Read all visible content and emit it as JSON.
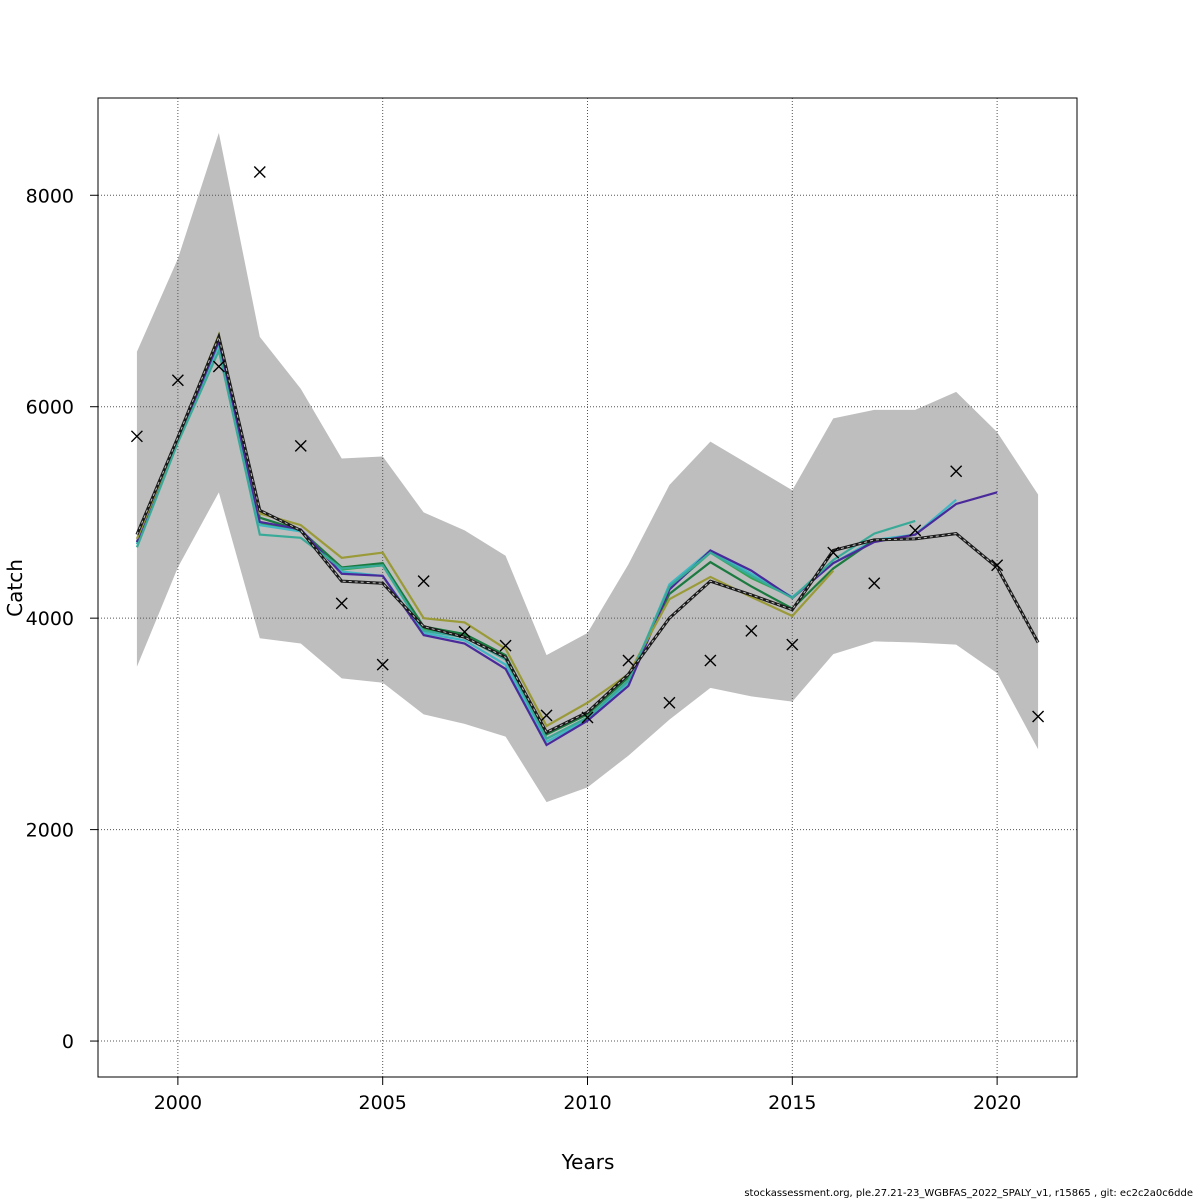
{
  "chart_data": {
    "type": "line",
    "title": "",
    "xlabel": "Years",
    "ylabel": "Catch",
    "xlim": [
      1998.05,
      2021.95
    ],
    "ylim": [
      -340,
      8920
    ],
    "x_ticks": [
      2000,
      2005,
      2010,
      2015,
      2020
    ],
    "y_ticks": [
      0,
      2000,
      4000,
      6000,
      8000
    ],
    "grid": true,
    "legend": "none",
    "colors": {
      "band": "#bebebe",
      "retro_1": "#31a354",
      "retro_2": "#41b6c4",
      "retro_3": "#1a7a3f",
      "retro_4": "#4a2a9a",
      "retro_5": "#9a9a38",
      "retro_6": "#3aaa98",
      "base": "#1a1a1a"
    },
    "band": {
      "x": [
        1999,
        2000,
        2001,
        2002,
        2003,
        2004,
        2005,
        2006,
        2007,
        2008,
        2009,
        2010,
        2011,
        2012,
        2013,
        2014,
        2015,
        2016,
        2017,
        2018,
        2019,
        2020,
        2021
      ],
      "upper": [
        6520,
        7400,
        8590,
        6660,
        6170,
        5510,
        5530,
        5000,
        4830,
        4590,
        3650,
        3860,
        4510,
        5260,
        5670,
        5440,
        5210,
        5890,
        5970,
        5970,
        6140,
        5760,
        5170
      ],
      "lower": [
        3540,
        4480,
        5190,
        3810,
        3760,
        3430,
        3390,
        3090,
        3000,
        2880,
        2260,
        2400,
        2700,
        3040,
        3340,
        3260,
        3210,
        3660,
        3780,
        3770,
        3750,
        3480,
        2760
      ]
    },
    "observed": {
      "x": [
        1999,
        2000,
        2001,
        2002,
        2003,
        2004,
        2005,
        2006,
        2007,
        2008,
        2009,
        2010,
        2011,
        2012,
        2013,
        2014,
        2015,
        2016,
        2017,
        2018,
        2019,
        2020,
        2021
      ],
      "y": [
        5720,
        6250,
        6380,
        8220,
        5630,
        4140,
        3560,
        4350,
        3870,
        3740,
        3080,
        3060,
        3600,
        3200,
        3600,
        3880,
        3750,
        4620,
        4330,
        4830,
        5390,
        4500,
        3070
      ]
    },
    "series": [
      {
        "color_key": "retro_1",
        "x": [
          1999,
          2000,
          2001,
          2002,
          2003,
          2004,
          2005,
          2006,
          2007,
          2008,
          2009,
          2010,
          2011,
          2012,
          2013,
          2014,
          2015
        ],
        "values": [
          4700,
          5680,
          6600,
          4900,
          4820,
          4460,
          4500,
          3900,
          3830,
          3610,
          2860,
          3060,
          3400,
          4280,
          4620,
          4380,
          4200
        ]
      },
      {
        "color_key": "retro_2",
        "x": [
          1999,
          2000,
          2001,
          2002,
          2003,
          2004,
          2005,
          2006,
          2007,
          2008,
          2009,
          2010,
          2011,
          2012,
          2013,
          2014,
          2015,
          2016,
          2017,
          2018,
          2019
        ],
        "values": [
          4700,
          5680,
          6590,
          4880,
          4820,
          4440,
          4400,
          3860,
          3790,
          3560,
          2830,
          3040,
          3390,
          4320,
          4640,
          4420,
          4200,
          4520,
          4740,
          4790,
          5120
        ]
      },
      {
        "color_key": "retro_3",
        "x": [
          1999,
          2000,
          2001,
          2002,
          2003,
          2004,
          2005,
          2006,
          2007,
          2008,
          2009,
          2010,
          2011,
          2012,
          2013,
          2014,
          2015,
          2016,
          2017
        ],
        "values": [
          4720,
          5680,
          6640,
          4950,
          4830,
          4480,
          4520,
          3920,
          3850,
          3650,
          2900,
          3090,
          3440,
          4230,
          4530,
          4300,
          4090,
          4470,
          4740
        ]
      },
      {
        "color_key": "retro_4",
        "x": [
          1999,
          2000,
          2001,
          2002,
          2003,
          2004,
          2005,
          2006,
          2007,
          2008,
          2009,
          2010,
          2011,
          2012,
          2013,
          2014,
          2015,
          2016,
          2017,
          2018,
          2019,
          2020
        ],
        "values": [
          4720,
          5680,
          6620,
          4910,
          4840,
          4420,
          4400,
          3840,
          3760,
          3520,
          2800,
          3030,
          3360,
          4270,
          4640,
          4450,
          4190,
          4520,
          4720,
          4790,
          5080,
          5190
        ]
      },
      {
        "color_key": "retro_5",
        "x": [
          1999,
          2000,
          2001,
          2002,
          2003,
          2004,
          2005,
          2006,
          2007,
          2008,
          2009,
          2010,
          2011,
          2012,
          2013,
          2014,
          2015,
          2016
        ],
        "values": [
          4750,
          5700,
          6680,
          4990,
          4880,
          4570,
          4620,
          4000,
          3960,
          3710,
          2980,
          3200,
          3470,
          4180,
          4390,
          4200,
          4020,
          4450
        ]
      },
      {
        "color_key": "retro_6",
        "x": [
          1999,
          2000,
          2001,
          2002,
          2003,
          2004,
          2005,
          2006,
          2007,
          2008,
          2009,
          2010,
          2011,
          2012,
          2013,
          2014,
          2015,
          2016,
          2017,
          2018
        ],
        "values": [
          4670,
          5660,
          6530,
          4790,
          4760,
          4470,
          4500,
          3880,
          3820,
          3610,
          2860,
          3060,
          3410,
          4300,
          4620,
          4400,
          4190,
          4550,
          4800,
          4920
        ]
      },
      {
        "color_key": "base",
        "dashed": true,
        "x": [
          1999,
          2000,
          2001,
          2002,
          2003,
          2004,
          2005,
          2006,
          2007,
          2008,
          2009,
          2010,
          2011,
          2012,
          2013,
          2014,
          2015,
          2016,
          2017,
          2018,
          2019,
          2020,
          2021
        ],
        "values": [
          4790,
          5710,
          6660,
          5020,
          4830,
          4350,
          4330,
          3920,
          3820,
          3630,
          2920,
          3110,
          3470,
          4000,
          4350,
          4220,
          4080,
          4640,
          4740,
          4750,
          4800,
          4480,
          3770
        ]
      }
    ]
  },
  "footer": {
    "text": "stockassessment.org, ple.27.21-23_WGBFAS_2022_SPALY_v1, r15865 , git: ec2c2a0c6dde"
  }
}
